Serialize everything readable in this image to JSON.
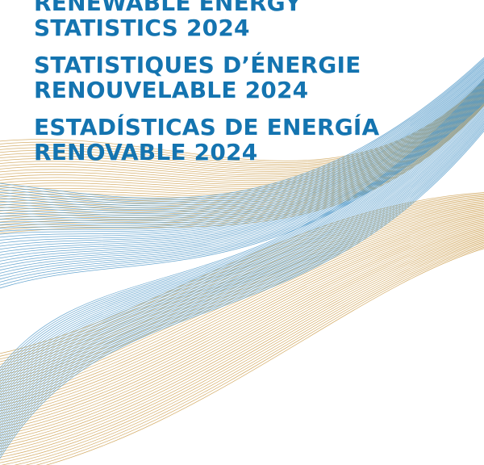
{
  "titles": [
    {
      "lines": [
        "RENEWABLE ENERGY",
        "STATISTICS 2024"
      ]
    },
    {
      "lines": [
        "STATISTIQUES D’ÉNERGIE",
        "RENOUVELABLE 2024"
      ]
    },
    {
      "lines": [
        "ESTADÍSTICAS DE ENERGÍA",
        "RENOVABLE 2024"
      ]
    }
  ],
  "colors": {
    "title": "#1474b0",
    "wave_blue": "#4e97c8",
    "wave_gold": "#cfa255",
    "background": "#ffffff"
  }
}
